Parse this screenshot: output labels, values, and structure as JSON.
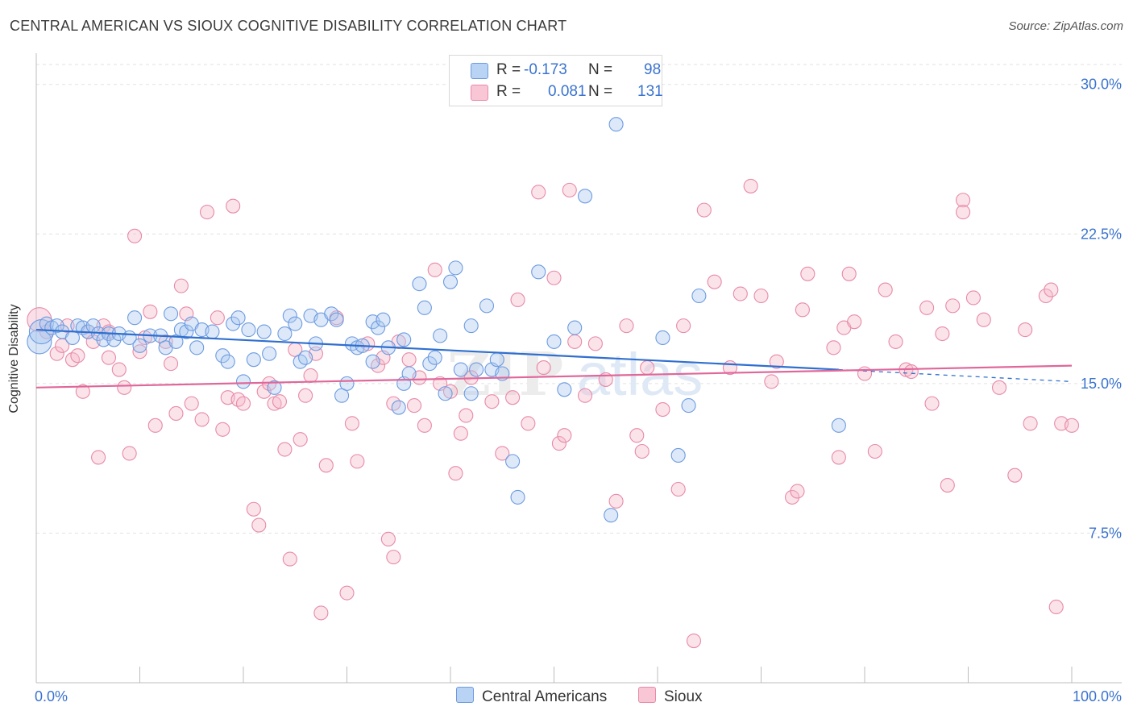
{
  "title": "CENTRAL AMERICAN VS SIOUX COGNITIVE DISABILITY CORRELATION CHART",
  "source": "Source: ZipAtlas.com",
  "watermark": {
    "zip": "ZIP",
    "atlas": "atlas"
  },
  "legend": {
    "series1": {
      "r_label": "R =",
      "r_value": "-0.173",
      "n_label": "N =",
      "n_value": "98"
    },
    "series2": {
      "r_label": "R =",
      "r_value": "0.081",
      "n_label": "N =",
      "n_value": "131"
    }
  },
  "bottom_legend": {
    "series1": "Central Americans",
    "series2": "Sioux"
  },
  "colors": {
    "blue_fill": "#a9c8f0",
    "blue_stroke": "#6d9be0",
    "blue_line": "#2f6fcf",
    "pink_fill": "#f6b8cb",
    "pink_stroke": "#e88aa8",
    "pink_line": "#e0679a",
    "tick_label": "#3a73cf",
    "grid": "#e2e2e2"
  },
  "chart_data": {
    "type": "scatter",
    "title": "CENTRAL AMERICAN VS SIOUX COGNITIVE DISABILITY CORRELATION CHART",
    "xlabel": "",
    "ylabel": "Cognitive Disability",
    "xlim": [
      0,
      100
    ],
    "ylim": [
      0,
      31
    ],
    "x_tick_labels": [
      "0.0%",
      "100.0%"
    ],
    "y_ticks": [
      7.5,
      15.0,
      22.5,
      30.0
    ],
    "y_tick_labels": [
      "7.5%",
      "15.0%",
      "22.5%",
      "30.0%"
    ],
    "grid": "horizontal dashed",
    "legend_position": "top-center",
    "series": [
      {
        "name": "Central Americans",
        "R": -0.173,
        "N": 98,
        "trend": {
          "x": [
            0,
            77.5
          ],
          "y": [
            17.7,
            15.7
          ],
          "dashed_to": [
            100,
            15.1
          ]
        },
        "points": [
          [
            0.3,
            17.1,
            "L"
          ],
          [
            0.5,
            17.6,
            "L"
          ],
          [
            1.0,
            18.0
          ],
          [
            1.5,
            17.8
          ],
          [
            2.0,
            17.9
          ],
          [
            2.5,
            17.6
          ],
          [
            3.5,
            17.3
          ],
          [
            4.0,
            17.9
          ],
          [
            4.5,
            17.8
          ],
          [
            5.0,
            17.6
          ],
          [
            5.5,
            17.9
          ],
          [
            6.0,
            17.5
          ],
          [
            6.5,
            17.2
          ],
          [
            7.0,
            17.5
          ],
          [
            7.5,
            17.2
          ],
          [
            8.0,
            17.5
          ],
          [
            9.0,
            17.3
          ],
          [
            9.5,
            18.3
          ],
          [
            10.0,
            16.9
          ],
          [
            11.0,
            17.4
          ],
          [
            12.0,
            17.4
          ],
          [
            12.5,
            16.8
          ],
          [
            13.0,
            18.5
          ],
          [
            13.5,
            17.1
          ],
          [
            14.0,
            17.7
          ],
          [
            14.5,
            17.6
          ],
          [
            15.0,
            18.0
          ],
          [
            15.5,
            16.8
          ],
          [
            16.0,
            17.7
          ],
          [
            17.0,
            17.6
          ],
          [
            18.0,
            16.4
          ],
          [
            18.5,
            16.1
          ],
          [
            19.0,
            18.0
          ],
          [
            19.5,
            18.3
          ],
          [
            20.0,
            15.1
          ],
          [
            20.5,
            17.7
          ],
          [
            21.0,
            16.2
          ],
          [
            22.0,
            17.6
          ],
          [
            22.5,
            16.5
          ],
          [
            23.0,
            14.8
          ],
          [
            24.0,
            17.5
          ],
          [
            24.5,
            18.4
          ],
          [
            25.0,
            18.0
          ],
          [
            25.5,
            16.1
          ],
          [
            26.0,
            16.3
          ],
          [
            26.5,
            18.4
          ],
          [
            27.0,
            17.0
          ],
          [
            27.5,
            18.2
          ],
          [
            28.5,
            18.5
          ],
          [
            29.0,
            18.2
          ],
          [
            29.5,
            14.4
          ],
          [
            30.0,
            15.0
          ],
          [
            30.5,
            17.0
          ],
          [
            31.0,
            16.8
          ],
          [
            31.5,
            16.9
          ],
          [
            32.5,
            16.1
          ],
          [
            32.5,
            18.1
          ],
          [
            33.0,
            17.8
          ],
          [
            33.5,
            18.2
          ],
          [
            34.0,
            16.8
          ],
          [
            35.0,
            13.8
          ],
          [
            35.5,
            17.2
          ],
          [
            35.5,
            15.0
          ],
          [
            36.0,
            15.5
          ],
          [
            37.0,
            20.0
          ],
          [
            37.5,
            18.8
          ],
          [
            38.0,
            16.0
          ],
          [
            38.5,
            16.3
          ],
          [
            39.0,
            17.4
          ],
          [
            39.5,
            14.5
          ],
          [
            40.0,
            20.1
          ],
          [
            40.5,
            20.8
          ],
          [
            41.0,
            15.7
          ],
          [
            42.0,
            14.5
          ],
          [
            42.0,
            17.9
          ],
          [
            42.5,
            15.7
          ],
          [
            43.5,
            18.9
          ],
          [
            44.0,
            15.7
          ],
          [
            44.5,
            16.2
          ],
          [
            45.0,
            15.5
          ],
          [
            46.0,
            11.1
          ],
          [
            46.5,
            9.3
          ],
          [
            48.5,
            20.6
          ],
          [
            50.0,
            17.1
          ],
          [
            51.0,
            14.7
          ],
          [
            52.0,
            17.8
          ],
          [
            53.0,
            24.4
          ],
          [
            55.5,
            8.4
          ],
          [
            56.0,
            28.0
          ],
          [
            60.5,
            17.3
          ],
          [
            62.0,
            11.4
          ],
          [
            63.0,
            13.9
          ],
          [
            64.0,
            19.4
          ],
          [
            77.5,
            12.9
          ]
        ]
      },
      {
        "name": "Sioux",
        "R": 0.081,
        "N": 131,
        "trend": {
          "x": [
            0,
            100
          ],
          "y": [
            14.8,
            15.9
          ]
        },
        "points": [
          [
            0.3,
            18.2,
            "L"
          ],
          [
            1.0,
            17.6
          ],
          [
            2.0,
            16.5
          ],
          [
            2.5,
            16.9
          ],
          [
            3.0,
            17.9
          ],
          [
            3.5,
            16.2
          ],
          [
            4.0,
            16.4
          ],
          [
            4.5,
            14.6
          ],
          [
            5.0,
            17.6
          ],
          [
            5.5,
            17.1
          ],
          [
            6.0,
            11.3
          ],
          [
            6.5,
            17.9
          ],
          [
            7.0,
            17.6
          ],
          [
            7.0,
            16.3
          ],
          [
            8.0,
            15.7
          ],
          [
            8.5,
            14.8
          ],
          [
            9.0,
            11.5
          ],
          [
            9.5,
            22.4
          ],
          [
            10.0,
            16.6
          ],
          [
            10.5,
            17.3
          ],
          [
            11.0,
            18.6
          ],
          [
            11.5,
            12.9
          ],
          [
            12.5,
            17.1
          ],
          [
            13.0,
            16.0
          ],
          [
            13.5,
            13.5
          ],
          [
            14.0,
            19.9
          ],
          [
            14.5,
            18.5
          ],
          [
            15.0,
            14.0
          ],
          [
            16.0,
            13.2
          ],
          [
            16.5,
            23.6
          ],
          [
            17.5,
            18.3
          ],
          [
            18.0,
            12.7
          ],
          [
            18.5,
            14.3
          ],
          [
            19.0,
            23.9
          ],
          [
            19.5,
            14.2
          ],
          [
            20.0,
            14.0
          ],
          [
            21.0,
            8.7
          ],
          [
            21.5,
            7.9
          ],
          [
            22.0,
            14.6
          ],
          [
            22.5,
            15.0
          ],
          [
            23.0,
            14.0
          ],
          [
            23.5,
            14.1
          ],
          [
            24.0,
            11.7
          ],
          [
            24.5,
            6.2
          ],
          [
            25.0,
            16.7
          ],
          [
            25.5,
            12.2
          ],
          [
            26.0,
            14.4
          ],
          [
            26.5,
            15.4
          ],
          [
            27.0,
            16.5
          ],
          [
            27.5,
            3.5
          ],
          [
            28.0,
            10.9
          ],
          [
            29.0,
            18.3
          ],
          [
            30.0,
            4.5
          ],
          [
            30.5,
            13.0
          ],
          [
            31.0,
            11.1
          ],
          [
            32.0,
            17.0
          ],
          [
            33.0,
            15.9
          ],
          [
            33.5,
            16.3
          ],
          [
            34.0,
            7.2
          ],
          [
            34.5,
            14.0
          ],
          [
            34.5,
            6.3
          ],
          [
            35.0,
            17.1
          ],
          [
            36.0,
            16.2
          ],
          [
            36.5,
            13.9
          ],
          [
            37.0,
            15.3
          ],
          [
            37.5,
            12.9
          ],
          [
            38.5,
            20.7
          ],
          [
            39.0,
            15.0
          ],
          [
            40.0,
            14.6
          ],
          [
            40.5,
            10.5
          ],
          [
            41.0,
            12.5
          ],
          [
            41.5,
            13.4
          ],
          [
            42.0,
            15.3
          ],
          [
            44.0,
            14.1
          ],
          [
            45.0,
            11.5
          ],
          [
            46.0,
            14.3
          ],
          [
            46.5,
            19.2
          ],
          [
            47.5,
            13.0
          ],
          [
            48.5,
            24.6
          ],
          [
            49.0,
            15.8
          ],
          [
            50.0,
            20.3
          ],
          [
            50.5,
            12.0
          ],
          [
            51.0,
            12.4
          ],
          [
            51.5,
            24.7
          ],
          [
            52.0,
            17.1
          ],
          [
            53.0,
            14.4
          ],
          [
            54.0,
            17.0
          ],
          [
            55.0,
            15.2
          ],
          [
            56.0,
            9.1
          ],
          [
            57.0,
            17.9
          ],
          [
            58.0,
            12.4
          ],
          [
            58.5,
            11.6
          ],
          [
            59.0,
            15.8
          ],
          [
            60.5,
            13.7
          ],
          [
            62.0,
            9.7
          ],
          [
            62.5,
            17.9
          ],
          [
            63.5,
            2.1
          ],
          [
            64.5,
            23.7
          ],
          [
            65.5,
            20.1
          ],
          [
            67.0,
            15.8
          ],
          [
            68.0,
            19.5
          ],
          [
            69.0,
            24.9
          ],
          [
            70.0,
            19.4
          ],
          [
            71.0,
            15.1
          ],
          [
            71.5,
            16.1
          ],
          [
            73.0,
            9.3
          ],
          [
            73.5,
            9.6
          ],
          [
            74.0,
            18.7
          ],
          [
            74.5,
            20.5
          ],
          [
            77.0,
            16.8
          ],
          [
            77.5,
            11.3
          ],
          [
            78.0,
            17.8
          ],
          [
            78.5,
            20.5
          ],
          [
            79.0,
            18.1
          ],
          [
            80.0,
            15.5
          ],
          [
            81.0,
            11.6
          ],
          [
            82.0,
            19.7
          ],
          [
            83.0,
            17.1
          ],
          [
            84.0,
            15.7
          ],
          [
            84.5,
            15.6
          ],
          [
            86.0,
            18.8
          ],
          [
            86.5,
            14.0
          ],
          [
            87.5,
            17.5
          ],
          [
            88.0,
            9.9
          ],
          [
            88.5,
            18.9
          ],
          [
            89.5,
            24.2
          ],
          [
            89.5,
            23.6
          ],
          [
            90.5,
            19.3
          ],
          [
            91.5,
            18.2
          ],
          [
            93.0,
            14.8
          ],
          [
            94.5,
            10.4
          ],
          [
            95.5,
            17.7
          ],
          [
            96.0,
            13.0
          ],
          [
            97.5,
            19.4
          ],
          [
            98.0,
            19.7
          ],
          [
            98.5,
            3.8
          ],
          [
            99.0,
            13.0
          ],
          [
            100.0,
            12.9
          ]
        ]
      }
    ]
  }
}
